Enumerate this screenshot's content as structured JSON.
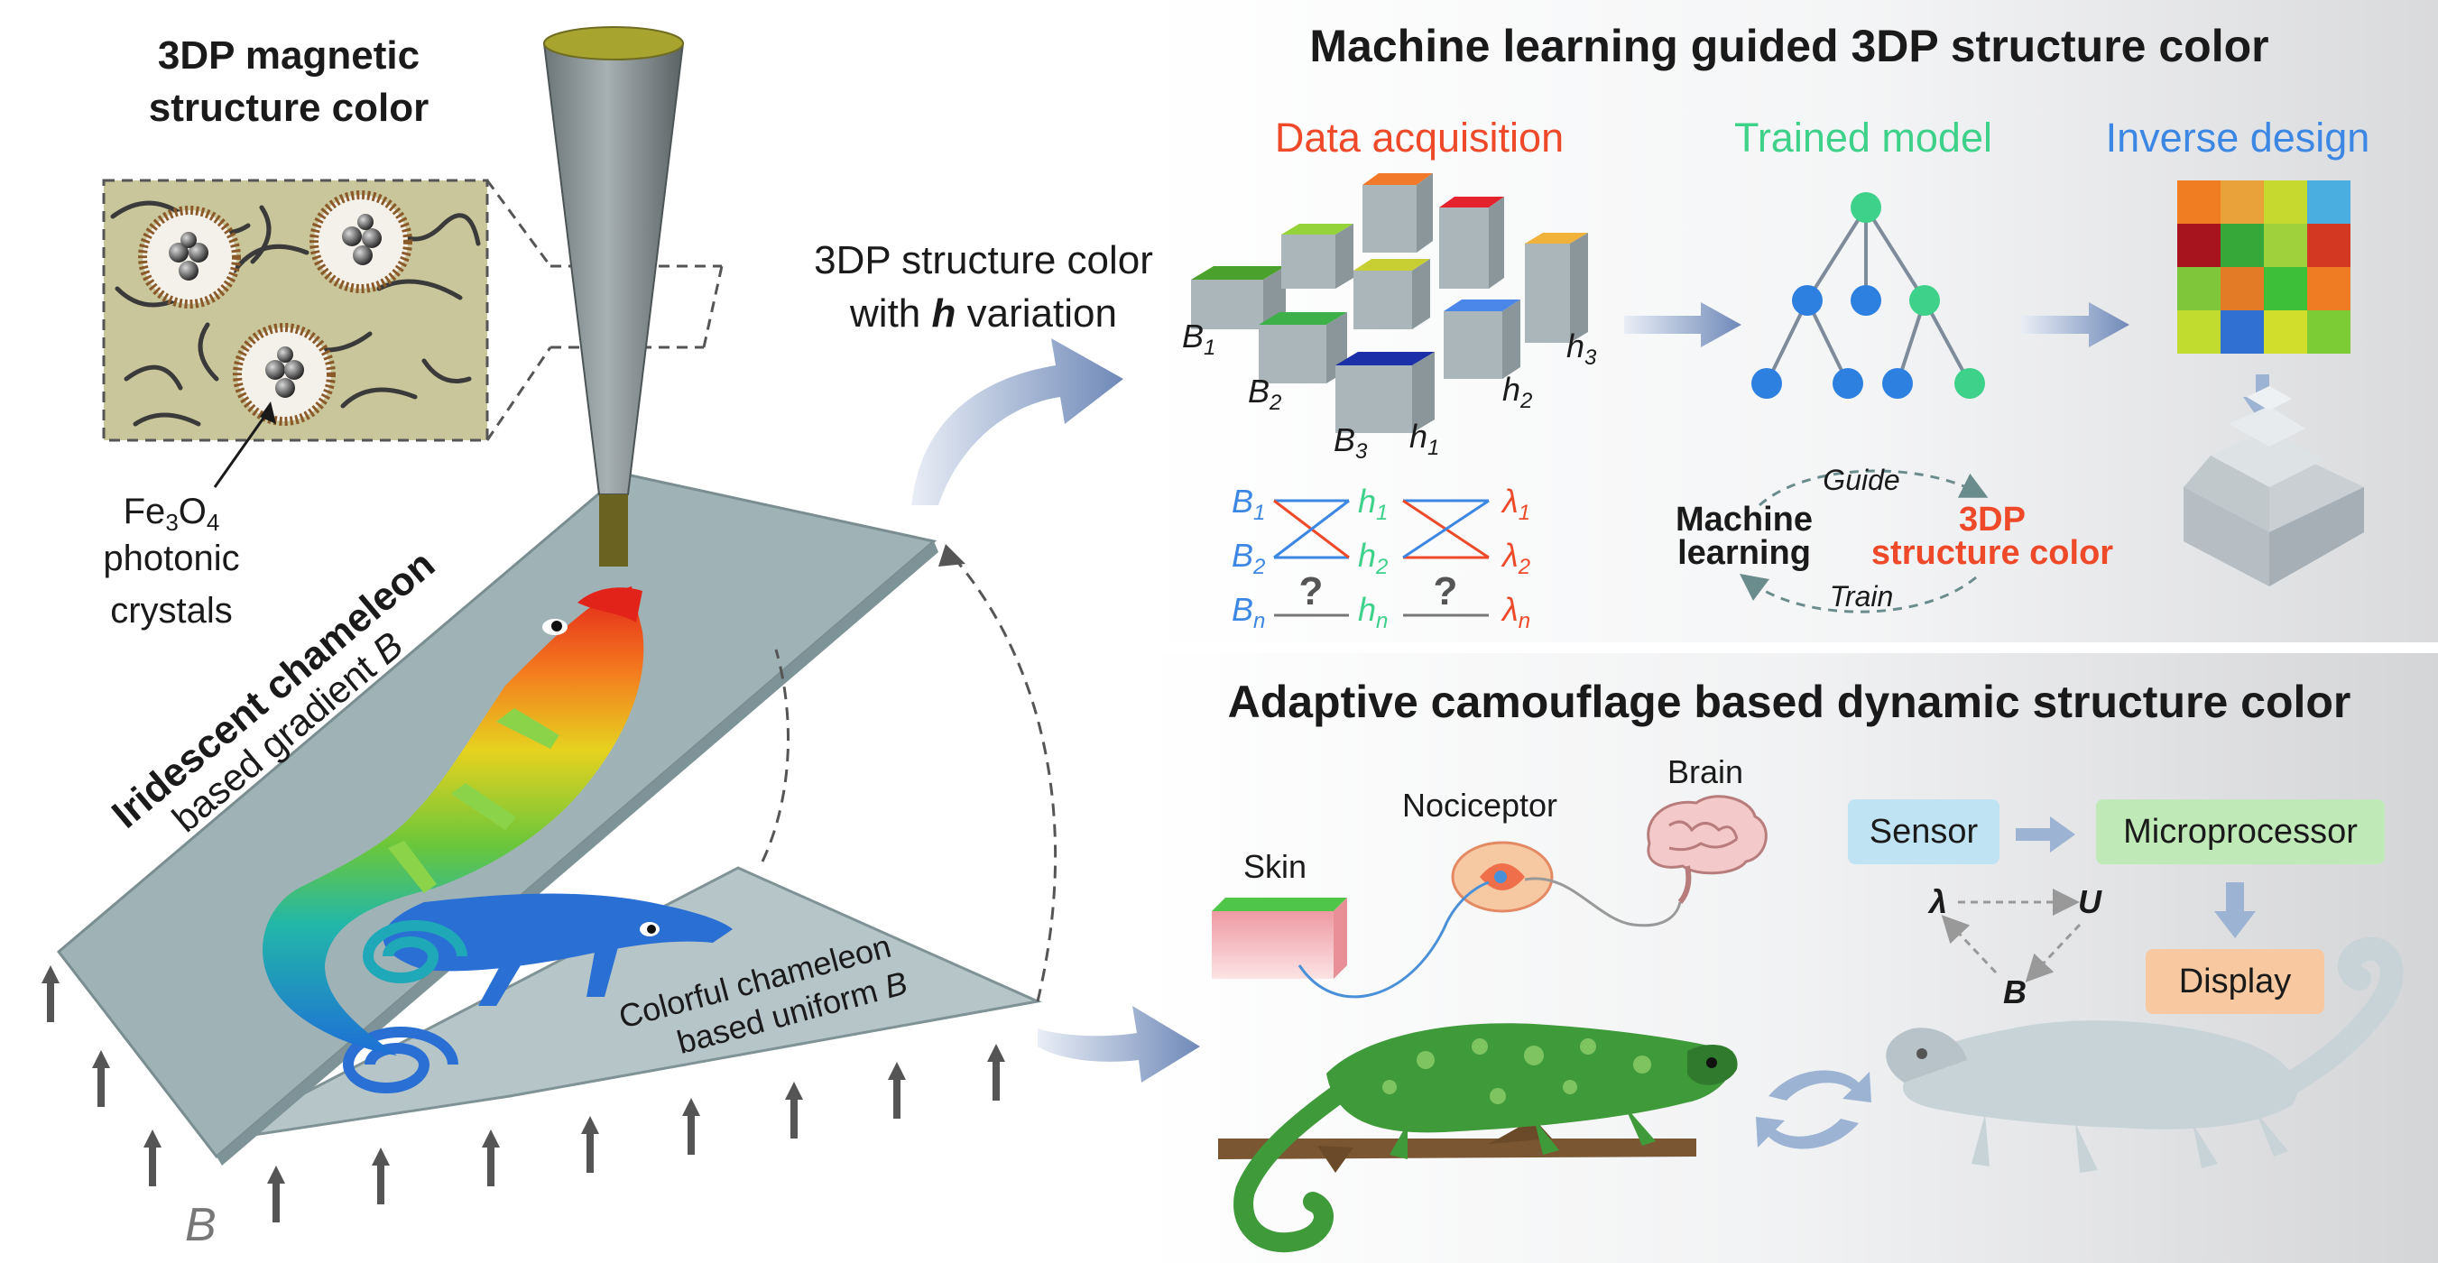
{
  "left": {
    "title_line1": "3DP magnetic",
    "title_line2": "structure color",
    "fe_sub_3": "3",
    "fe_sub_4": "4",
    "crystal_label_l2": "photonic",
    "crystal_label_l3": "crystals",
    "iridescent_l1": "Iridescent chameleon",
    "iridescent_l2": "based gradient",
    "colorful_l1": "Colorful chameleon",
    "colorful_l2": "based uniform",
    "field_var": "B"
  },
  "middle": {
    "variation_l1": "3DP structure color",
    "variation_l2_pre": "with",
    "variation_var": "h",
    "variation_l2_post": "variation"
  },
  "ml_panel": {
    "title": "Machine learning guided 3DP structure color",
    "data_acquisition": "Data acquisition",
    "trained_model": "Trained model",
    "inverse_design": "Inverse design",
    "guide": "Guide",
    "train": "Train",
    "machine_l1": "Machine",
    "machine_l2": "learning",
    "sc_l1": "3DP",
    "sc_l2": "structure color",
    "question": "?",
    "colors": {
      "red": "#ee4a2a",
      "green": "#3dd18a",
      "blue": "#3c87e4"
    }
  },
  "cam_panel": {
    "title": "Adaptive camouflage based dynamic structure color",
    "skin": "Skin",
    "nociceptor": "Nociceptor",
    "brain": "Brain",
    "sensor": "Sensor",
    "microprocessor": "Microprocessor",
    "display": "Display",
    "lambda": "λ",
    "u_var": "U",
    "b_var": "B"
  }
}
